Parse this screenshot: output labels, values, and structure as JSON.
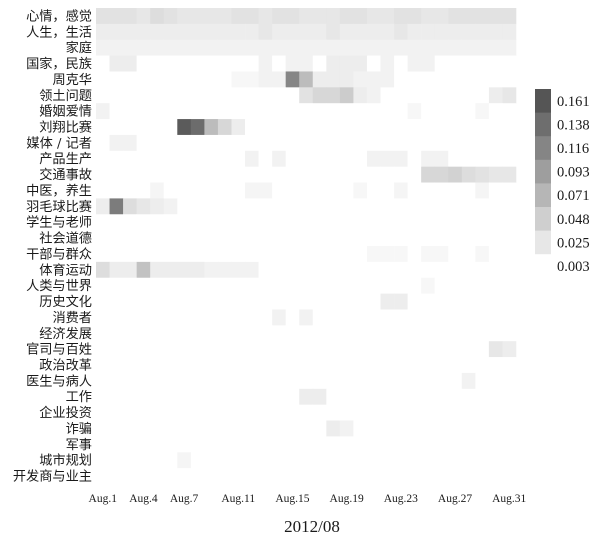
{
  "chart_data": {
    "type": "heatmap",
    "xlabel": "2012/08",
    "ylabel": "",
    "rows": [
      "心情，感觉",
      "人生，生活",
      "家庭",
      "国家，民族",
      "周克华",
      "领土问题",
      "婚姻爱情",
      "刘翔比赛",
      "媒体 / 记者",
      "产品生产",
      "交通事故",
      "中医，养生",
      "羽毛球比赛",
      "学生与老师",
      "社会道德",
      "干部与群众",
      "体育运动",
      "人类与世界",
      "历史文化",
      "消费者",
      "经济发展",
      "官司与百姓",
      "政治改革",
      "医生与病人",
      "工作",
      "企业投资",
      "诈骗",
      "军事",
      "城市规划",
      "开发商与业主"
    ],
    "columns": [
      "Aug.1",
      "Aug.2",
      "Aug.3",
      "Aug.4",
      "Aug.5",
      "Aug.6",
      "Aug.7",
      "Aug.8",
      "Aug.9",
      "Aug.10",
      "Aug.11",
      "Aug.12",
      "Aug.13",
      "Aug.14",
      "Aug.15",
      "Aug.16",
      "Aug.17",
      "Aug.18",
      "Aug.19",
      "Aug.20",
      "Aug.21",
      "Aug.22",
      "Aug.23",
      "Aug.24",
      "Aug.25",
      "Aug.26",
      "Aug.27",
      "Aug.28",
      "Aug.29",
      "Aug.30",
      "Aug.31"
    ],
    "tick_labels": [
      "Aug.1",
      "Aug.4",
      "Aug.7",
      "Aug.11",
      "Aug.15",
      "Aug.19",
      "Aug.23",
      "Aug.27",
      "Aug.31"
    ],
    "tick_columns": [
      0,
      3,
      6,
      10,
      14,
      18,
      22,
      26,
      30
    ],
    "legend_values": [
      "0.161",
      "0.138",
      "0.116",
      "0.093",
      "0.071",
      "0.048",
      "0.025",
      "0.003"
    ],
    "value_range": [
      0.003,
      0.161
    ],
    "grid": false,
    "legend_position": "right",
    "color_scale": [
      "#ffffff",
      "#555555"
    ],
    "base_value": 0.003,
    "cells": [
      [
        0,
        0,
        0.03
      ],
      [
        0,
        1,
        0.03
      ],
      [
        0,
        2,
        0.03
      ],
      [
        0,
        3,
        0.025
      ],
      [
        0,
        4,
        0.035
      ],
      [
        0,
        5,
        0.03
      ],
      [
        0,
        6,
        0.025
      ],
      [
        0,
        7,
        0.025
      ],
      [
        0,
        8,
        0.025
      ],
      [
        0,
        9,
        0.025
      ],
      [
        0,
        10,
        0.03
      ],
      [
        0,
        11,
        0.03
      ],
      [
        0,
        12,
        0.025
      ],
      [
        0,
        13,
        0.03
      ],
      [
        0,
        14,
        0.03
      ],
      [
        0,
        15,
        0.025
      ],
      [
        0,
        16,
        0.025
      ],
      [
        0,
        17,
        0.025
      ],
      [
        0,
        18,
        0.03
      ],
      [
        0,
        19,
        0.03
      ],
      [
        0,
        20,
        0.025
      ],
      [
        0,
        21,
        0.025
      ],
      [
        0,
        22,
        0.03
      ],
      [
        0,
        23,
        0.03
      ],
      [
        0,
        24,
        0.025
      ],
      [
        0,
        25,
        0.025
      ],
      [
        0,
        26,
        0.03
      ],
      [
        0,
        27,
        0.03
      ],
      [
        0,
        28,
        0.03
      ],
      [
        0,
        29,
        0.03
      ],
      [
        0,
        30,
        0.03
      ],
      [
        1,
        0,
        0.02
      ],
      [
        1,
        1,
        0.02
      ],
      [
        1,
        2,
        0.02
      ],
      [
        1,
        3,
        0.02
      ],
      [
        1,
        4,
        0.02
      ],
      [
        1,
        5,
        0.02
      ],
      [
        1,
        6,
        0.02
      ],
      [
        1,
        7,
        0.02
      ],
      [
        1,
        8,
        0.02
      ],
      [
        1,
        9,
        0.02
      ],
      [
        1,
        10,
        0.02
      ],
      [
        1,
        11,
        0.02
      ],
      [
        1,
        12,
        0.025
      ],
      [
        1,
        13,
        0.02
      ],
      [
        1,
        14,
        0.02
      ],
      [
        1,
        15,
        0.02
      ],
      [
        1,
        16,
        0.02
      ],
      [
        1,
        17,
        0.025
      ],
      [
        1,
        18,
        0.02
      ],
      [
        1,
        19,
        0.02
      ],
      [
        1,
        20,
        0.02
      ],
      [
        1,
        21,
        0.02
      ],
      [
        1,
        22,
        0.025
      ],
      [
        1,
        23,
        0.02
      ],
      [
        1,
        24,
        0.02
      ],
      [
        1,
        25,
        0.02
      ],
      [
        1,
        26,
        0.02
      ],
      [
        1,
        27,
        0.02
      ],
      [
        1,
        28,
        0.02
      ],
      [
        1,
        29,
        0.02
      ],
      [
        1,
        30,
        0.02
      ],
      [
        2,
        0,
        0.015
      ],
      [
        2,
        1,
        0.015
      ],
      [
        2,
        2,
        0.015
      ],
      [
        2,
        3,
        0.015
      ],
      [
        2,
        4,
        0.015
      ],
      [
        2,
        5,
        0.015
      ],
      [
        2,
        6,
        0.015
      ],
      [
        2,
        7,
        0.015
      ],
      [
        2,
        8,
        0.015
      ],
      [
        2,
        9,
        0.015
      ],
      [
        2,
        10,
        0.015
      ],
      [
        2,
        11,
        0.015
      ],
      [
        2,
        12,
        0.015
      ],
      [
        2,
        13,
        0.015
      ],
      [
        2,
        14,
        0.015
      ],
      [
        2,
        15,
        0.015
      ],
      [
        2,
        16,
        0.015
      ],
      [
        2,
        17,
        0.015
      ],
      [
        2,
        18,
        0.015
      ],
      [
        2,
        19,
        0.015
      ],
      [
        2,
        20,
        0.015
      ],
      [
        2,
        21,
        0.015
      ],
      [
        2,
        22,
        0.015
      ],
      [
        2,
        23,
        0.015
      ],
      [
        2,
        24,
        0.015
      ],
      [
        2,
        25,
        0.015
      ],
      [
        2,
        26,
        0.015
      ],
      [
        2,
        27,
        0.015
      ],
      [
        2,
        28,
        0.015
      ],
      [
        2,
        29,
        0.015
      ],
      [
        2,
        30,
        0.015
      ],
      [
        3,
        1,
        0.02
      ],
      [
        3,
        2,
        0.02
      ],
      [
        3,
        12,
        0.015
      ],
      [
        3,
        14,
        0.015
      ],
      [
        3,
        15,
        0.015
      ],
      [
        3,
        17,
        0.02
      ],
      [
        3,
        18,
        0.02
      ],
      [
        3,
        19,
        0.02
      ],
      [
        3,
        21,
        0.015
      ],
      [
        3,
        23,
        0.015
      ],
      [
        3,
        24,
        0.015
      ],
      [
        4,
        10,
        0.01
      ],
      [
        4,
        11,
        0.01
      ],
      [
        4,
        12,
        0.015
      ],
      [
        4,
        13,
        0.015
      ],
      [
        4,
        14,
        0.115
      ],
      [
        4,
        15,
        0.065
      ],
      [
        4,
        16,
        0.02
      ],
      [
        4,
        17,
        0.02
      ],
      [
        4,
        18,
        0.02
      ],
      [
        4,
        19,
        0.015
      ],
      [
        4,
        20,
        0.015
      ],
      [
        4,
        21,
        0.015
      ],
      [
        5,
        15,
        0.03
      ],
      [
        5,
        16,
        0.04
      ],
      [
        5,
        17,
        0.04
      ],
      [
        5,
        18,
        0.05
      ],
      [
        5,
        19,
        0.02
      ],
      [
        5,
        20,
        0.015
      ],
      [
        5,
        29,
        0.02
      ],
      [
        5,
        30,
        0.025
      ],
      [
        6,
        0,
        0.015
      ],
      [
        6,
        23,
        0.01
      ],
      [
        6,
        28,
        0.01
      ],
      [
        7,
        6,
        0.155
      ],
      [
        7,
        7,
        0.14
      ],
      [
        7,
        8,
        0.065
      ],
      [
        7,
        9,
        0.04
      ],
      [
        7,
        10,
        0.02
      ],
      [
        8,
        1,
        0.015
      ],
      [
        8,
        2,
        0.015
      ],
      [
        9,
        11,
        0.015
      ],
      [
        9,
        13,
        0.015
      ],
      [
        9,
        20,
        0.015
      ],
      [
        9,
        21,
        0.015
      ],
      [
        9,
        22,
        0.015
      ],
      [
        9,
        24,
        0.015
      ],
      [
        9,
        25,
        0.015
      ],
      [
        10,
        24,
        0.04
      ],
      [
        10,
        25,
        0.04
      ],
      [
        10,
        26,
        0.045
      ],
      [
        10,
        27,
        0.035
      ],
      [
        10,
        28,
        0.03
      ],
      [
        10,
        29,
        0.025
      ],
      [
        10,
        30,
        0.025
      ],
      [
        11,
        4,
        0.012
      ],
      [
        11,
        11,
        0.012
      ],
      [
        11,
        12,
        0.012
      ],
      [
        11,
        19,
        0.01
      ],
      [
        11,
        22,
        0.012
      ],
      [
        11,
        28,
        0.012
      ],
      [
        12,
        0,
        0.02
      ],
      [
        12,
        1,
        0.125
      ],
      [
        12,
        2,
        0.035
      ],
      [
        12,
        3,
        0.025
      ],
      [
        12,
        4,
        0.02
      ],
      [
        12,
        5,
        0.015
      ],
      [
        16,
        0,
        0.035
      ],
      [
        16,
        1,
        0.02
      ],
      [
        16,
        2,
        0.02
      ],
      [
        16,
        3,
        0.06
      ],
      [
        16,
        4,
        0.02
      ],
      [
        16,
        5,
        0.02
      ],
      [
        16,
        6,
        0.02
      ],
      [
        16,
        7,
        0.02
      ],
      [
        16,
        8,
        0.015
      ],
      [
        16,
        9,
        0.015
      ],
      [
        16,
        10,
        0.015
      ],
      [
        16,
        11,
        0.015
      ],
      [
        15,
        20,
        0.01
      ],
      [
        15,
        21,
        0.01
      ],
      [
        15,
        22,
        0.01
      ],
      [
        15,
        24,
        0.01
      ],
      [
        15,
        25,
        0.01
      ],
      [
        15,
        28,
        0.01
      ],
      [
        17,
        24,
        0.01
      ],
      [
        18,
        21,
        0.02
      ],
      [
        18,
        22,
        0.02
      ],
      [
        19,
        13,
        0.015
      ],
      [
        19,
        15,
        0.015
      ],
      [
        21,
        29,
        0.025
      ],
      [
        21,
        30,
        0.02
      ],
      [
        23,
        27,
        0.015
      ],
      [
        24,
        15,
        0.02
      ],
      [
        24,
        16,
        0.02
      ],
      [
        26,
        17,
        0.02
      ],
      [
        26,
        18,
        0.015
      ],
      [
        28,
        6,
        0.012
      ]
    ]
  }
}
